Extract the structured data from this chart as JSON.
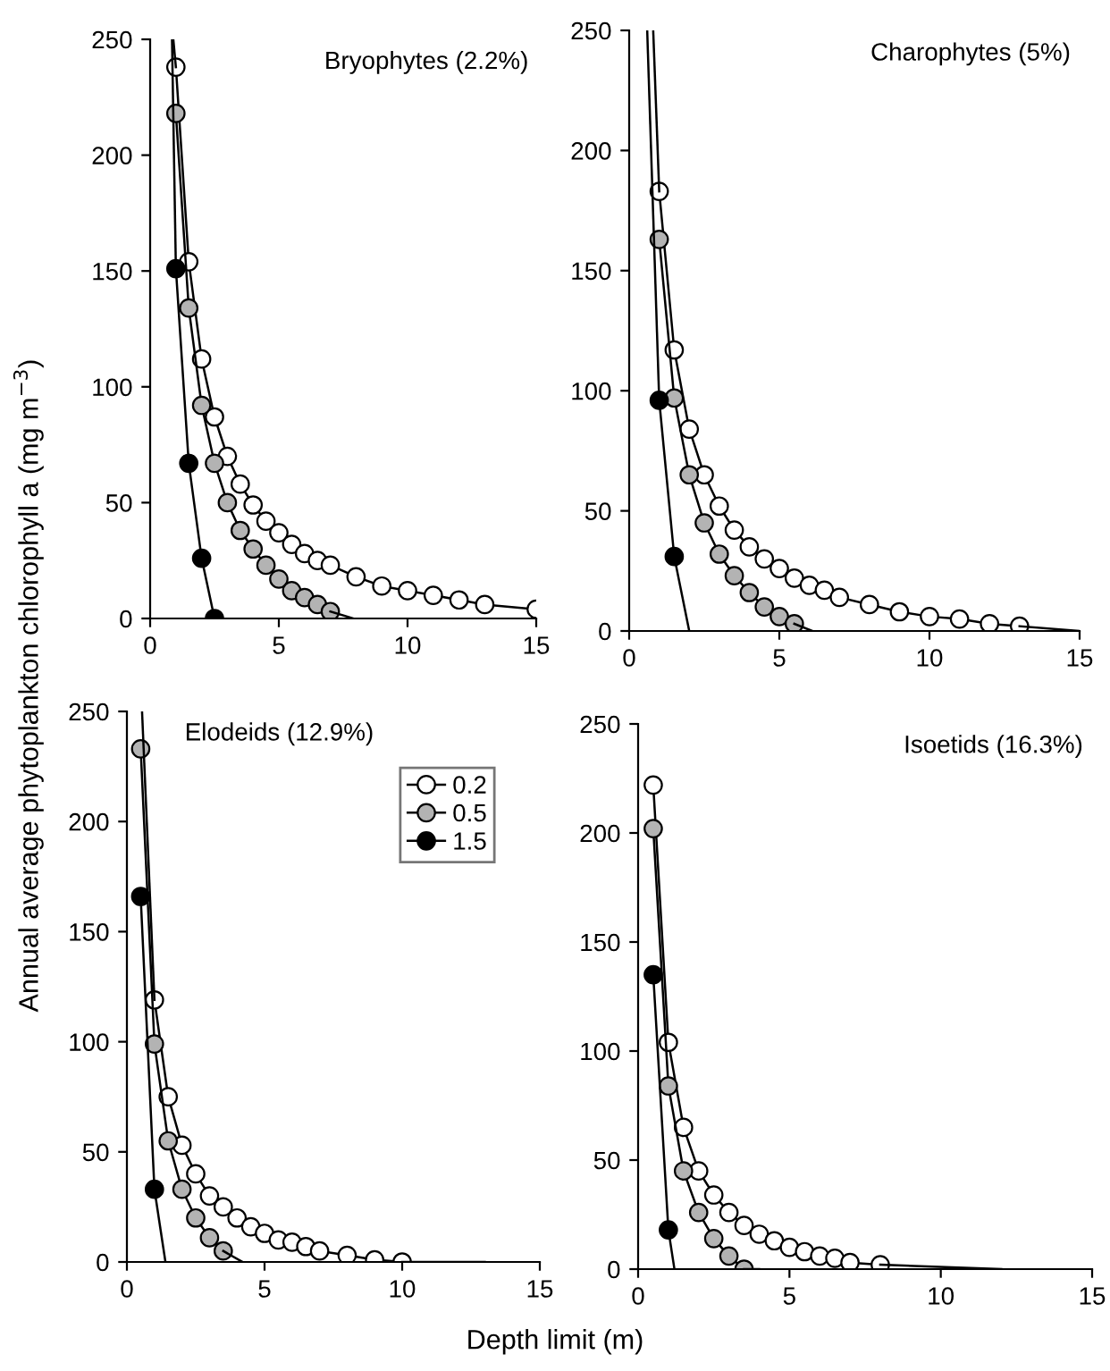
{
  "chart_data": [
    {
      "type": "line",
      "title": "Bryophytes (2.2%)",
      "ylabel": "Annual average phytoplankton chlorophyll a (mg m$^{−3}$)",
      "xlim": [
        0,
        15
      ],
      "ylim": [
        0,
        250
      ],
      "xticks": [
        0,
        5,
        10,
        15
      ],
      "yticks": [
        0,
        50,
        100,
        150,
        200,
        250
      ],
      "marker": "circle",
      "line_style": "solid",
      "grid": false,
      "legend": false,
      "series": [
        {
          "color": "#ffffff",
          "x": [
            1,
            1.5,
            2,
            2.5,
            3,
            3.5,
            4,
            4.5,
            5,
            5.5,
            6,
            6.5,
            7,
            8,
            9,
            10,
            11,
            12,
            13,
            15
          ],
          "values": [
            238,
            154,
            112,
            87,
            70,
            58,
            49,
            42,
            37,
            32,
            28,
            25,
            23,
            18,
            14,
            12,
            10,
            8,
            6,
            4
          ]
        },
        {
          "color": "#b3b3b3",
          "x": [
            1,
            1.5,
            2,
            2.5,
            3,
            3.5,
            4,
            4.5,
            5,
            5.5,
            6,
            6.5,
            7
          ],
          "values": [
            218,
            134,
            92,
            67,
            50,
            38,
            30,
            23,
            17,
            12,
            9,
            6,
            3
          ]
        },
        {
          "color": "#000000",
          "x": [
            1,
            1.5,
            2,
            2.5
          ],
          "values": [
            151,
            67,
            26,
            0
          ]
        },
        {
          "type": "line",
          "marker": "none",
          "color": "#000000",
          "x": [
            0.9,
            1
          ],
          "values": [
            250,
            238
          ]
        },
        {
          "type": "line",
          "marker": "none",
          "color": "#000000",
          "x": [
            7,
            7.9
          ],
          "values": [
            3,
            0
          ]
        },
        {
          "type": "line",
          "marker": "none",
          "color": "#000000",
          "x": [
            0.85,
            1
          ],
          "values": [
            250,
            151
          ]
        }
      ]
    },
    {
      "type": "line",
      "title": "Charophytes (5%)",
      "xlim": [
        0,
        15
      ],
      "ylim": [
        0,
        250
      ],
      "xticks": [
        0,
        5,
        10,
        15
      ],
      "yticks": [
        0,
        50,
        100,
        150,
        200,
        250
      ],
      "marker": "circle",
      "line_style": "solid",
      "grid": false,
      "legend": false,
      "series": [
        {
          "color": "#ffffff",
          "x": [
            1,
            1.5,
            2,
            2.5,
            3,
            3.5,
            4,
            4.5,
            5,
            5.5,
            6,
            6.5,
            7,
            8,
            9,
            10,
            11,
            12,
            13
          ],
          "values": [
            183,
            117,
            84,
            65,
            52,
            42,
            35,
            30,
            26,
            22,
            19,
            17,
            14,
            11,
            8,
            6,
            5,
            3,
            2
          ]
        },
        {
          "color": "#b3b3b3",
          "x": [
            1,
            1.5,
            2,
            2.5,
            3,
            3.5,
            4,
            4.5,
            5,
            5.5
          ],
          "values": [
            163,
            97,
            65,
            45,
            32,
            23,
            16,
            10,
            6,
            3
          ]
        },
        {
          "color": "#000000",
          "x": [
            1,
            1.5
          ],
          "values": [
            96,
            31
          ]
        },
        {
          "type": "line",
          "marker": "none",
          "color": "#000000",
          "x": [
            0.8,
            1
          ],
          "values": [
            250,
            183
          ]
        },
        {
          "type": "line",
          "marker": "none",
          "color": "#000000",
          "x": [
            13,
            15
          ],
          "values": [
            2,
            0
          ]
        },
        {
          "type": "line",
          "marker": "none",
          "color": "#000000",
          "x": [
            5.5,
            6.1
          ],
          "values": [
            3,
            0
          ]
        },
        {
          "type": "line",
          "marker": "none",
          "color": "#000000",
          "x": [
            0.6,
            1
          ],
          "values": [
            250,
            96
          ]
        },
        {
          "type": "line",
          "marker": "none",
          "color": "#000000",
          "x": [
            1.5,
            2
          ],
          "values": [
            31,
            0
          ]
        }
      ]
    },
    {
      "type": "line",
      "title": "Elodeids (12.9%)",
      "xlabel": "Depth limit (m)",
      "xlim": [
        0,
        15
      ],
      "ylim": [
        0,
        250
      ],
      "xticks": [
        0,
        5,
        10,
        15
      ],
      "yticks": [
        0,
        50,
        100,
        150,
        200,
        250
      ],
      "marker": "circle",
      "line_style": "solid",
      "grid": false,
      "legend": "top right",
      "series": [
        {
          "name": "0.2",
          "color": "#ffffff",
          "x": [
            1,
            1.5,
            2,
            2.5,
            3,
            3.5,
            4,
            4.5,
            5,
            5.5,
            6,
            6.5,
            7,
            8,
            9,
            10
          ],
          "values": [
            119,
            75,
            53,
            40,
            30,
            25,
            20,
            16,
            13,
            10,
            9,
            7,
            5,
            3,
            1,
            0
          ]
        },
        {
          "name": "0.5",
          "color": "#b3b3b3",
          "x": [
            0.5,
            1,
            1.5,
            2,
            2.5,
            3,
            3.5
          ],
          "values": [
            233,
            99,
            55,
            33,
            20,
            11,
            5
          ]
        },
        {
          "name": "1.5",
          "color": "#000000",
          "x": [
            0.5,
            1
          ],
          "values": [
            166,
            33
          ]
        },
        {
          "type": "line",
          "marker": "none",
          "color": "#000000",
          "x": [
            0.55,
            1
          ],
          "values": [
            250,
            119
          ]
        },
        {
          "type": "line",
          "marker": "none",
          "color": "#000000",
          "x": [
            10,
            13
          ],
          "values": [
            0,
            0
          ]
        },
        {
          "type": "line",
          "marker": "none",
          "color": "#000000",
          "x": [
            3.5,
            4.2
          ],
          "values": [
            5,
            0
          ]
        },
        {
          "type": "line",
          "marker": "none",
          "color": "#000000",
          "x": [
            1,
            1.4
          ],
          "values": [
            33,
            0
          ]
        }
      ]
    },
    {
      "type": "line",
      "title": "Isoetids (16.3%)",
      "xlim": [
        0,
        15
      ],
      "ylim": [
        0,
        250
      ],
      "xticks": [
        0,
        5,
        10,
        15
      ],
      "yticks": [
        0,
        50,
        100,
        150,
        200,
        250
      ],
      "marker": "circle",
      "line_style": "solid",
      "grid": false,
      "legend": false,
      "series": [
        {
          "color": "#ffffff",
          "x": [
            0.5,
            1,
            1.5,
            2,
            2.5,
            3,
            3.5,
            4,
            4.5,
            5,
            5.5,
            6,
            6.5,
            7,
            8
          ],
          "values": [
            222,
            104,
            65,
            45,
            34,
            26,
            20,
            16,
            13,
            10,
            8,
            6,
            5,
            3,
            2
          ]
        },
        {
          "color": "#b3b3b3",
          "x": [
            0.5,
            1,
            1.5,
            2,
            2.5,
            3,
            3.5
          ],
          "values": [
            202,
            84,
            45,
            26,
            14,
            6,
            0
          ]
        },
        {
          "color": "#000000",
          "x": [
            0.5,
            1
          ],
          "values": [
            135,
            18
          ]
        },
        {
          "type": "line",
          "marker": "none",
          "color": "#000000",
          "x": [
            8,
            12
          ],
          "values": [
            2,
            0
          ]
        },
        {
          "type": "line",
          "marker": "none",
          "color": "#000000",
          "x": [
            3.5,
            4
          ],
          "values": [
            0,
            0
          ]
        },
        {
          "type": "line",
          "marker": "none",
          "color": "#000000",
          "x": [
            1,
            1.2
          ],
          "values": [
            18,
            0
          ]
        }
      ]
    }
  ]
}
